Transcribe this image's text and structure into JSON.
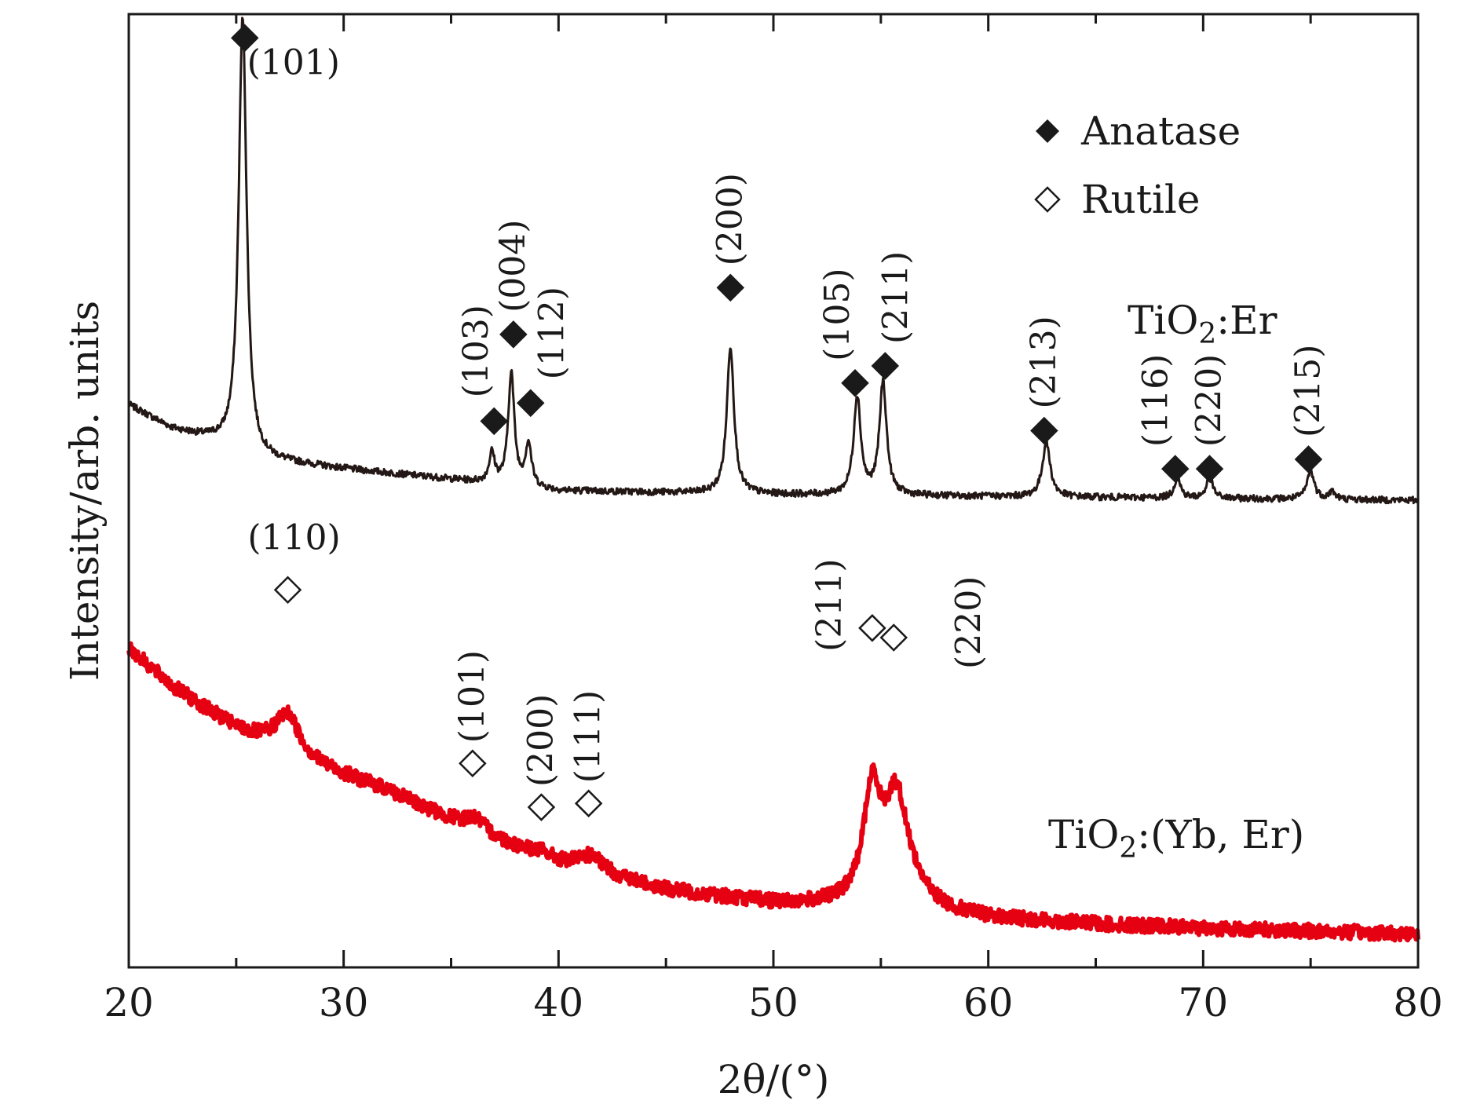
{
  "chart_data": {
    "type": "line",
    "title": "",
    "xlabel": "2θ/(°)",
    "ylabel": "Intensity/arb. units",
    "xlim": [
      20,
      80
    ],
    "ylim": [
      0,
      100
    ],
    "x_ticks": [
      20,
      30,
      40,
      50,
      60,
      70,
      80
    ],
    "grid": false,
    "legend": {
      "placement": "top-right",
      "entries": [
        {
          "name": "Anatase",
          "marker": "filled-diamond"
        },
        {
          "name": "Rutile",
          "marker": "open-diamond"
        }
      ]
    },
    "series": [
      {
        "name": "TiO2:Er",
        "label_main": "TiO",
        "label_sub": "2",
        "label_rest": ":Er",
        "color": "#231815",
        "baseline": {
          "x": [
            20,
            22,
            24,
            26,
            30,
            35,
            40,
            45,
            50,
            55,
            60,
            65,
            70,
            75,
            80
          ],
          "y": [
            59,
            56.5,
            55.2,
            53.3,
            52.3,
            51.2,
            50,
            49.8,
            49.6,
            49.5,
            49.4,
            49.3,
            49.2,
            49.1,
            49
          ]
        },
        "peaks": [
          {
            "x": 25.3,
            "height": 45.8,
            "width": 0.22
          },
          {
            "x": 36.9,
            "height": 3.1,
            "width": 0.16
          },
          {
            "x": 37.8,
            "height": 11.8,
            "width": 0.17
          },
          {
            "x": 38.6,
            "height": 4.5,
            "width": 0.17
          },
          {
            "x": 48.0,
            "height": 15.5,
            "width": 0.2
          },
          {
            "x": 53.9,
            "height": 10.3,
            "width": 0.2
          },
          {
            "x": 55.1,
            "height": 11.8,
            "width": 0.2
          },
          {
            "x": 62.7,
            "height": 5.7,
            "width": 0.22
          },
          {
            "x": 68.8,
            "height": 2.1,
            "width": 0.18
          },
          {
            "x": 70.3,
            "height": 2.2,
            "width": 0.18
          },
          {
            "x": 75.0,
            "height": 3.0,
            "width": 0.2
          },
          {
            "x": 76.0,
            "height": 0.8,
            "width": 0.18
          }
        ]
      },
      {
        "name": "TiO2:(Yb, Er)",
        "label_main": "TiO",
        "label_sub": "2",
        "label_rest": ":(Yb, Er)",
        "color": "#e50012",
        "baseline": {
          "x": [
            20,
            22,
            25,
            28,
            32,
            36,
            40,
            45,
            50,
            55,
            60,
            65,
            70,
            75,
            80
          ],
          "y": [
            33.5,
            29.5,
            25,
            21.7,
            18.6,
            14.3,
            10.9,
            8.1,
            6.7,
            6.1,
            5.1,
            4.5,
            4.1,
            3.8,
            3.5
          ]
        },
        "peaks": [
          {
            "x": 27.4,
            "height": 4.3,
            "width": 0.7
          },
          {
            "x": 36.1,
            "height": 1.5,
            "width": 0.6
          },
          {
            "x": 39.2,
            "height": 0.5,
            "width": 0.6
          },
          {
            "x": 41.5,
            "height": 1.6,
            "width": 0.7
          },
          {
            "x": 54.6,
            "height": 11.5,
            "width": 0.5
          },
          {
            "x": 55.7,
            "height": 9.6,
            "width": 0.6
          },
          {
            "x": 56.2,
            "height": 2.5,
            "width": 1.0
          }
        ]
      }
    ],
    "annotations": [
      {
        "text": "(101)",
        "phase": "Anatase",
        "x": 25.4,
        "y": 97.5,
        "rotate": false,
        "series": "TiO2:Er"
      },
      {
        "text": "(103)",
        "phase": "Anatase",
        "x": 37.0,
        "y": 57.3,
        "rotate": true,
        "series": "TiO2:Er"
      },
      {
        "text": "(004)",
        "phase": "Anatase",
        "x": 37.9,
        "y": 66.4,
        "rotate": true,
        "series": "TiO2:Er"
      },
      {
        "text": "(112)",
        "phase": "Anatase",
        "x": 38.7,
        "y": 59.2,
        "rotate": true,
        "series": "TiO2:Er"
      },
      {
        "text": "(200)",
        "phase": "Anatase",
        "x": 48.0,
        "y": 71.3,
        "rotate": true,
        "series": "TiO2:Er"
      },
      {
        "text": "(105)",
        "phase": "Anatase",
        "x": 53.8,
        "y": 61.3,
        "rotate": true,
        "series": "TiO2:Er"
      },
      {
        "text": "(211)",
        "phase": "Anatase",
        "x": 55.2,
        "y": 63.1,
        "rotate": true,
        "series": "TiO2:Er"
      },
      {
        "text": "(213)",
        "phase": "Anatase",
        "x": 62.6,
        "y": 56.3,
        "rotate": true,
        "series": "TiO2:Er"
      },
      {
        "text": "(116)",
        "phase": "Anatase",
        "x": 68.7,
        "y": 52.3,
        "rotate": true,
        "series": "TiO2:Er"
      },
      {
        "text": "(220)",
        "phase": "Anatase",
        "x": 70.3,
        "y": 52.3,
        "rotate": true,
        "series": "TiO2:Er"
      },
      {
        "text": "(215)",
        "phase": "Anatase",
        "x": 74.9,
        "y": 53.3,
        "rotate": true,
        "series": "TiO2:Er"
      },
      {
        "text": "(110)",
        "phase": "Rutile",
        "x": 27.4,
        "y": 39.6,
        "rotate": false,
        "series": "TiO2:(Yb, Er)"
      },
      {
        "text": "(101)",
        "phase": "Rutile",
        "x": 36.0,
        "y": 21.4,
        "rotate": true,
        "series": "TiO2:(Yb, Er)"
      },
      {
        "text": "(200)",
        "phase": "Rutile",
        "x": 39.2,
        "y": 16.8,
        "rotate": true,
        "series": "TiO2:(Yb, Er)"
      },
      {
        "text": "(111)",
        "phase": "Rutile",
        "x": 41.4,
        "y": 17.2,
        "rotate": true,
        "series": "TiO2:(Yb, Er)"
      },
      {
        "text": "(211)",
        "phase": "Rutile",
        "x": 54.6,
        "y": 35.6,
        "rotate": true,
        "series": "TiO2:(Yb, Er)"
      },
      {
        "text": "(220)",
        "phase": "Rutile",
        "x": 55.6,
        "y": 34.6,
        "rotate": true,
        "series": "TiO2:(Yb, Er)"
      }
    ]
  }
}
